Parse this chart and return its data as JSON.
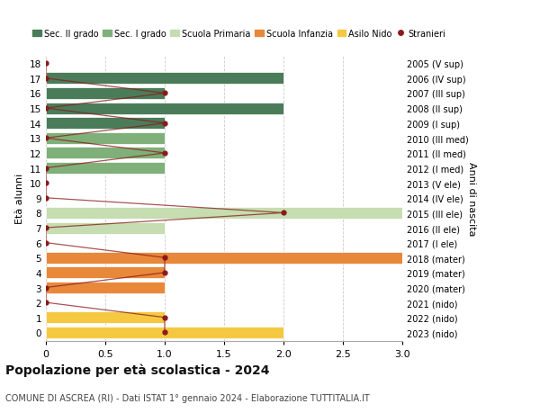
{
  "ages": [
    18,
    17,
    16,
    15,
    14,
    13,
    12,
    11,
    10,
    9,
    8,
    7,
    6,
    5,
    4,
    3,
    2,
    1,
    0
  ],
  "right_labels": [
    "2005 (V sup)",
    "2006 (IV sup)",
    "2007 (III sup)",
    "2008 (II sup)",
    "2009 (I sup)",
    "2010 (III med)",
    "2011 (II med)",
    "2012 (I med)",
    "2013 (V ele)",
    "2014 (IV ele)",
    "2015 (III ele)",
    "2016 (II ele)",
    "2017 (I ele)",
    "2018 (mater)",
    "2019 (mater)",
    "2020 (mater)",
    "2021 (nido)",
    "2022 (nido)",
    "2023 (nido)"
  ],
  "bars": [
    {
      "age": 18,
      "value": 0,
      "color": "#4a7c59"
    },
    {
      "age": 17,
      "value": 2.0,
      "color": "#4a7c59"
    },
    {
      "age": 16,
      "value": 1.0,
      "color": "#4a7c59"
    },
    {
      "age": 15,
      "value": 2.0,
      "color": "#4a7c59"
    },
    {
      "age": 14,
      "value": 1.0,
      "color": "#4a7c59"
    },
    {
      "age": 13,
      "value": 1.0,
      "color": "#7fb07a"
    },
    {
      "age": 12,
      "value": 1.0,
      "color": "#7fb07a"
    },
    {
      "age": 11,
      "value": 1.0,
      "color": "#7fb07a"
    },
    {
      "age": 10,
      "value": 0,
      "color": "#7fb07a"
    },
    {
      "age": 9,
      "value": 0,
      "color": "#c5ddb0"
    },
    {
      "age": 8,
      "value": 3.2,
      "color": "#c5ddb0"
    },
    {
      "age": 7,
      "value": 1.0,
      "color": "#c5ddb0"
    },
    {
      "age": 6,
      "value": 0,
      "color": "#c5ddb0"
    },
    {
      "age": 5,
      "value": 3.2,
      "color": "#e8883a"
    },
    {
      "age": 4,
      "value": 1.0,
      "color": "#e8883a"
    },
    {
      "age": 3,
      "value": 1.0,
      "color": "#e8883a"
    },
    {
      "age": 2,
      "value": 0,
      "color": "#e8883a"
    },
    {
      "age": 1,
      "value": 1.0,
      "color": "#f5c842"
    },
    {
      "age": 0,
      "value": 2.0,
      "color": "#f5c842"
    }
  ],
  "stranieri_dots": [
    {
      "age": 18,
      "x": 0.0
    },
    {
      "age": 17,
      "x": 0.0
    },
    {
      "age": 16,
      "x": 1.0
    },
    {
      "age": 15,
      "x": 0.0
    },
    {
      "age": 14,
      "x": 1.0
    },
    {
      "age": 13,
      "x": 0.0
    },
    {
      "age": 12,
      "x": 1.0
    },
    {
      "age": 11,
      "x": 0.0
    },
    {
      "age": 10,
      "x": 0.0
    },
    {
      "age": 9,
      "x": 0.0
    },
    {
      "age": 8,
      "x": 2.0
    },
    {
      "age": 7,
      "x": 0.0
    },
    {
      "age": 6,
      "x": 0.0
    },
    {
      "age": 5,
      "x": 1.0
    },
    {
      "age": 4,
      "x": 1.0
    },
    {
      "age": 3,
      "x": 0.0
    },
    {
      "age": 2,
      "x": 0.0
    },
    {
      "age": 1,
      "x": 1.0
    },
    {
      "age": 0,
      "x": 1.0
    }
  ],
  "legend": [
    {
      "label": "Sec. II grado",
      "color": "#4a7c59",
      "type": "patch"
    },
    {
      "label": "Sec. I grado",
      "color": "#7fb07a",
      "type": "patch"
    },
    {
      "label": "Scuola Primaria",
      "color": "#c5ddb0",
      "type": "patch"
    },
    {
      "label": "Scuola Infanzia",
      "color": "#e8883a",
      "type": "patch"
    },
    {
      "label": "Asilo Nido",
      "color": "#f5c842",
      "type": "patch"
    },
    {
      "label": "Stranieri",
      "color": "#8b1a1a",
      "type": "dot"
    }
  ],
  "ylabel_left": "Età alunni",
  "ylabel_right": "Anni di nascita",
  "title": "Popolazione per età scolastica - 2024",
  "subtitle": "COMUNE DI ASCREA (RI) - Dati ISTAT 1° gennaio 2024 - Elaborazione TUTTITALIA.IT",
  "xlim": [
    0,
    3.0
  ],
  "xticks": [
    0,
    0.5,
    1.0,
    1.5,
    2.0,
    2.5,
    3.0
  ],
  "xtick_labels": [
    "0",
    "0.5",
    "1.0",
    "1.5",
    "2.0",
    "2.5",
    "3.0"
  ],
  "ylim_min": -0.55,
  "ylim_max": 18.55,
  "bar_height": 0.78,
  "bg_color": "#ffffff",
  "grid_color": "#cccccc",
  "stranieri_line_color": "#8b1a1a",
  "stranieri_dot_color": "#8b1a1a"
}
